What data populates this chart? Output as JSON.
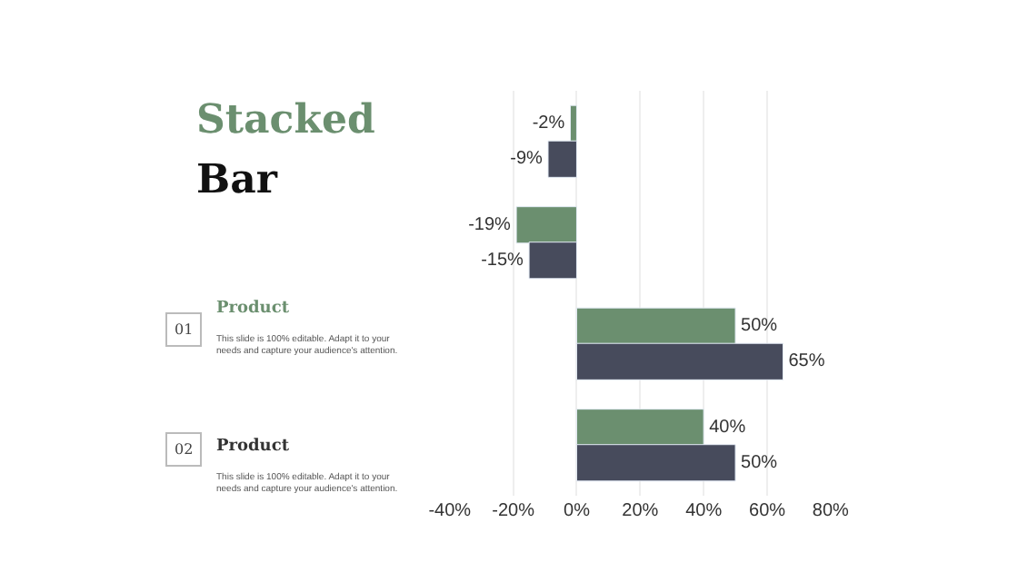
{
  "chart_data": {
    "type": "bar",
    "orientation": "horizontal",
    "title": "Stacked",
    "subtitle": "Bar",
    "categories": [
      null,
      null,
      null,
      null
    ],
    "series": [
      {
        "color": "#6b8f6f",
        "values": [
          -2,
          -19,
          50,
          40
        ],
        "value_labels": [
          "-2%",
          "-19%",
          "50%",
          "40%"
        ]
      },
      {
        "color": "#474b5c",
        "values": [
          -9,
          -15,
          65,
          50
        ],
        "value_labels": [
          "-9%",
          "-15%",
          "65%",
          "50%"
        ]
      }
    ],
    "xlim": [
      -40,
      80
    ],
    "xticks": [
      {
        "value": -40,
        "label": "-40%"
      },
      {
        "value": -20,
        "label": "-20%"
      },
      {
        "value": 0,
        "label": "0%"
      },
      {
        "value": 20,
        "label": "20%"
      },
      {
        "value": 40,
        "label": "40%"
      },
      {
        "value": 60,
        "label": "60%"
      },
      {
        "value": 80,
        "label": "80%"
      }
    ],
    "grid": "x",
    "legend": false,
    "tick_labels": "x",
    "annotations": [
      "01",
      "Product",
      "This slide is 100% editable. Adapt it to your\nneeds and capture your audience's attention.",
      "02",
      "Product",
      "This slide is 100% editable. Adapt it to your\nneeds and capture your audience's attention."
    ]
  }
}
